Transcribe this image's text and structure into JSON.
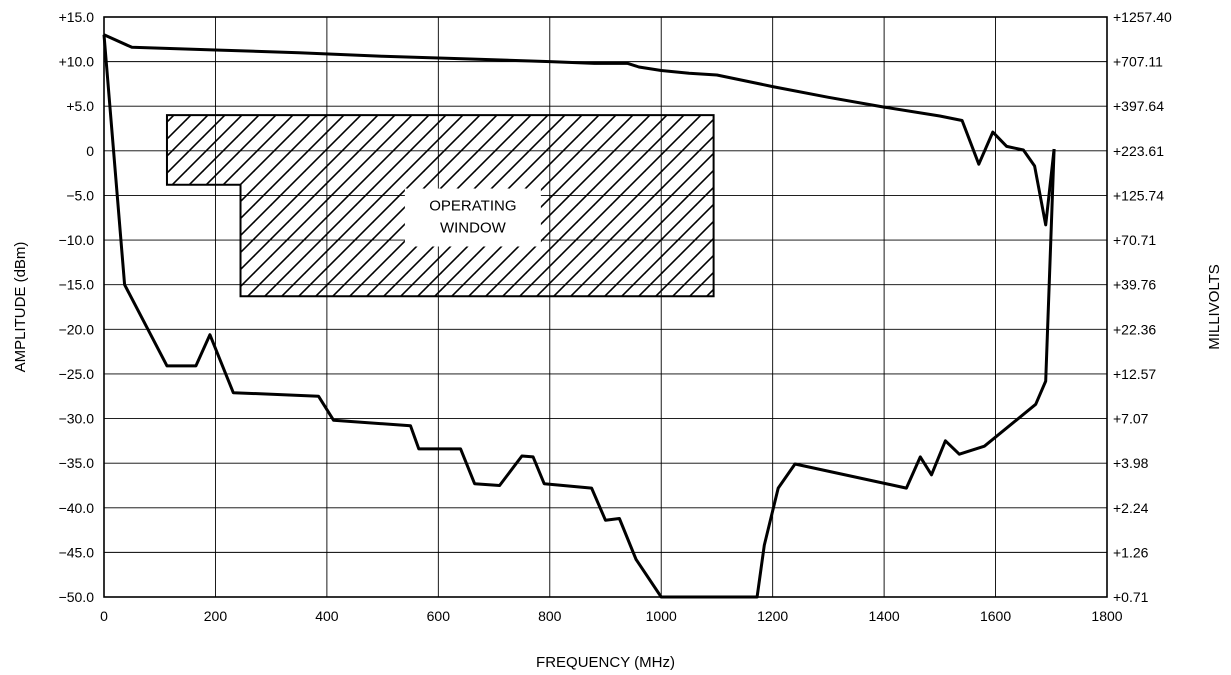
{
  "chart_data": {
    "type": "line",
    "title": "",
    "xlabel": "FREQUENCY (MHz)",
    "ylabel": "AMPLITUDE (dBm)",
    "y2label": "MILLIVOLTS",
    "xlim": [
      0,
      1800
    ],
    "ylim": [
      -50,
      15
    ],
    "grid": true,
    "x_ticks": [
      0,
      200,
      400,
      600,
      800,
      1000,
      1200,
      1400,
      1600,
      1800
    ],
    "x_tick_labels": [
      "0",
      "200",
      "400",
      "600",
      "800",
      "1000",
      "1200",
      "1400",
      "1600",
      "1800"
    ],
    "y_ticks": [
      15,
      10,
      5,
      0,
      -5,
      -10,
      -15,
      -20,
      -25,
      -30,
      -35,
      -40,
      -45,
      -50
    ],
    "y_tick_labels": [
      "+15.0",
      "+10.0",
      "+5.0",
      "0",
      "−5.0",
      "−10.0",
      "−15.0",
      "−20.0",
      "−25.0",
      "−30.0",
      "−35.0",
      "−40.0",
      "−45.0",
      "−50.0"
    ],
    "y2_tick_labels": [
      "+1257.40",
      "+707.11",
      "+397.64",
      "+223.61",
      "+125.74",
      "+70.71",
      "+39.76",
      "+22.36",
      "+12.57",
      "+7.07",
      "+3.98",
      "+2.24",
      "+1.26",
      "+0.71"
    ],
    "series": [
      {
        "x": [
          0,
          50,
          200,
          350,
          500,
          650,
          800,
          880,
          940,
          960,
          1000,
          1050,
          1100,
          1200,
          1300,
          1400,
          1500,
          1540,
          1570,
          1595,
          1620,
          1650,
          1670,
          1690,
          1705
        ],
        "y": [
          13,
          11.6,
          11.3,
          11,
          10.6,
          10.3,
          10,
          9.8,
          9.8,
          9.4,
          9,
          8.7,
          8.5,
          7.2,
          6,
          4.9,
          3.9,
          3.4,
          -1.5,
          2.1,
          0.5,
          0.1,
          -1.7,
          -8.3,
          0.2
        ]
      },
      {
        "x": [
          0,
          37,
          113,
          165,
          190,
          232,
          385,
          412,
          550,
          565,
          640,
          665,
          710,
          750,
          770,
          790,
          875,
          900,
          925,
          955,
          1000,
          1172,
          1185,
          1210,
          1240,
          1440,
          1465,
          1485,
          1510,
          1535,
          1580,
          1672,
          1690,
          1705
        ],
        "y": [
          13,
          -15,
          -24.1,
          -24.1,
          -20.6,
          -27.1,
          -27.5,
          -30.2,
          -30.8,
          -33.4,
          -33.4,
          -37.3,
          -37.5,
          -34.2,
          -34.3,
          -37.3,
          -37.8,
          -41.4,
          -41.2,
          -45.8,
          -50,
          -50,
          -44.2,
          -37.8,
          -35.1,
          -37.8,
          -34.3,
          -36.3,
          -32.5,
          -34,
          -33.1,
          -28.4,
          -25.8,
          0.2
        ]
      }
    ],
    "annotations": [
      {
        "text_lines": [
          "OPERATING",
          "WINDOW"
        ],
        "region_outline": [
          [
            113,
            4
          ],
          [
            1094,
            4
          ],
          [
            1094,
            -16.3
          ],
          [
            245,
            -16.3
          ],
          [
            245,
            -3.8
          ],
          [
            113,
            -3.8
          ]
        ]
      }
    ]
  }
}
